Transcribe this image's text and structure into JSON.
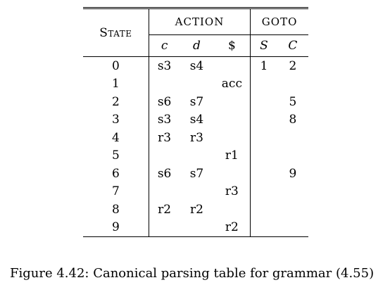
{
  "table": {
    "state_header": "State",
    "action_header": "ACTION",
    "goto_header": "GOTO",
    "action_symbols": [
      "c",
      "d",
      "$"
    ],
    "goto_symbols": [
      "S",
      "C"
    ],
    "rows": [
      {
        "state": "0",
        "c": "s3",
        "d": "s4",
        "end": "",
        "S": "1",
        "C": "2"
      },
      {
        "state": "1",
        "c": "",
        "d": "",
        "end": "acc",
        "S": "",
        "C": ""
      },
      {
        "state": "2",
        "c": "s6",
        "d": "s7",
        "end": "",
        "S": "",
        "C": "5"
      },
      {
        "state": "3",
        "c": "s3",
        "d": "s4",
        "end": "",
        "S": "",
        "C": "8"
      },
      {
        "state": "4",
        "c": "r3",
        "d": "r3",
        "end": "",
        "S": "",
        "C": ""
      },
      {
        "state": "5",
        "c": "",
        "d": "",
        "end": "r1",
        "S": "",
        "C": ""
      },
      {
        "state": "6",
        "c": "s6",
        "d": "s7",
        "end": "",
        "S": "",
        "C": "9"
      },
      {
        "state": "7",
        "c": "",
        "d": "",
        "end": "r3",
        "S": "",
        "C": ""
      },
      {
        "state": "8",
        "c": "r2",
        "d": "r2",
        "end": "",
        "S": "",
        "C": ""
      },
      {
        "state": "9",
        "c": "",
        "d": "",
        "end": "r2",
        "S": "",
        "C": ""
      }
    ]
  },
  "caption": "Figure 4.42: Canonical parsing table for grammar (4.55)"
}
